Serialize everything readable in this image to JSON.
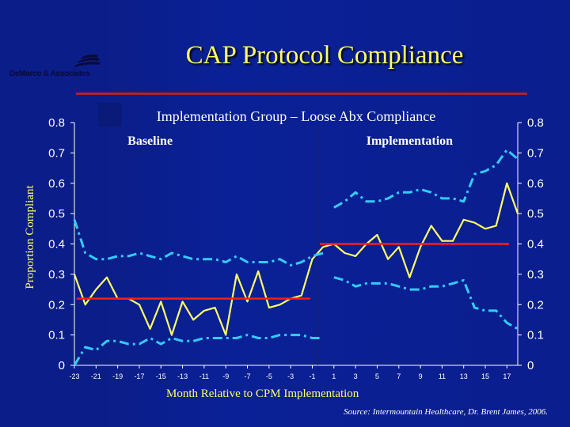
{
  "title": "CAP Protocol Compliance",
  "logo": {
    "name": "DeMarco & Associates"
  },
  "source": "Source: Intermountain Healthcare, Dr. Brent James, 2006.",
  "colors": {
    "title": "#ffff66",
    "series": "#ffff66",
    "ci": "#33ccff",
    "mean": "#ff1a1a",
    "axis": "#ffffff",
    "rule": "#b22222"
  },
  "chart_data": {
    "type": "line",
    "title": "Implementation Group – Loose Abx Compliance",
    "xlabel": "Month Relative to CPM Implementation",
    "ylabel": "Proportion Compliant",
    "xlim": [
      -23,
      18
    ],
    "ylim": [
      0,
      0.8
    ],
    "x_ticks": [
      -23,
      -21,
      -19,
      -17,
      -15,
      -13,
      -11,
      -9,
      -7,
      -5,
      -3,
      -1,
      1,
      3,
      5,
      7,
      9,
      11,
      13,
      15,
      17
    ],
    "x_tick_labels": [
      "-23",
      "-21",
      "-19",
      "-17",
      "-15",
      "-13",
      "-11",
      "-9",
      "-7",
      "-5",
      "-3",
      "-1",
      "1",
      "3",
      "5",
      "7",
      "9",
      "11",
      "13",
      "15",
      "17"
    ],
    "y_ticks": [
      0,
      0.1,
      0.2,
      0.3,
      0.4,
      0.5,
      0.6,
      0.7,
      0.8
    ],
    "y_tick_labels": [
      "0",
      "0.1",
      "0.2",
      "0.3",
      "0.4",
      "0.5",
      "0.6",
      "0.7",
      "0.8"
    ],
    "divider_x": -0.5,
    "phases": [
      {
        "label": "Baseline",
        "x": -16
      },
      {
        "label": "Implementation",
        "x": 8
      }
    ],
    "grid": false,
    "series": [
      {
        "role": "compliance",
        "x": [
          -23,
          -22,
          -21,
          -20,
          -19,
          -18,
          -17,
          -16,
          -15,
          -14,
          -13,
          -12,
          -11,
          -10,
          -9,
          -8,
          -7,
          -6,
          -5,
          -4,
          -3,
          -2,
          -1,
          0,
          1,
          2,
          3,
          4,
          5,
          6,
          7,
          8,
          9,
          10,
          11,
          12,
          13,
          14,
          15,
          16,
          17,
          18
        ],
        "values": [
          0.3,
          0.2,
          0.25,
          0.29,
          0.22,
          0.22,
          0.2,
          0.12,
          0.21,
          0.1,
          0.21,
          0.15,
          0.18,
          0.19,
          0.1,
          0.3,
          0.21,
          0.31,
          0.19,
          0.2,
          0.22,
          0.23,
          0.35,
          0.39,
          0.4,
          0.37,
          0.36,
          0.4,
          0.43,
          0.35,
          0.39,
          0.29,
          0.39,
          0.46,
          0.41,
          0.41,
          0.48,
          0.47,
          0.45,
          0.46,
          0.6,
          0.5
        ]
      },
      {
        "role": "upper-limit-baseline",
        "x": [
          -23,
          -22,
          -21,
          -20,
          -19,
          -18,
          -17,
          -16,
          -15,
          -14,
          -13,
          -12,
          -11,
          -10,
          -9,
          -8,
          -7,
          -6,
          -5,
          -4,
          -3,
          -2,
          -1,
          0
        ],
        "values": [
          0.48,
          0.37,
          0.35,
          0.35,
          0.36,
          0.36,
          0.37,
          0.36,
          0.35,
          0.37,
          0.36,
          0.35,
          0.35,
          0.35,
          0.34,
          0.36,
          0.34,
          0.34,
          0.34,
          0.35,
          0.33,
          0.34,
          0.36,
          0.37
        ]
      },
      {
        "role": "lower-limit-baseline",
        "x": [
          -23,
          -22,
          -21,
          -20,
          -19,
          -18,
          -17,
          -16,
          -15,
          -14,
          -13,
          -12,
          -11,
          -10,
          -9,
          -8,
          -7,
          -6,
          -5,
          -4,
          -3,
          -2,
          -1,
          0
        ],
        "values": [
          0.0,
          0.06,
          0.05,
          0.08,
          0.08,
          0.07,
          0.07,
          0.09,
          0.07,
          0.09,
          0.08,
          0.08,
          0.09,
          0.09,
          0.09,
          0.09,
          0.1,
          0.09,
          0.09,
          0.1,
          0.1,
          0.1,
          0.09,
          0.09
        ]
      },
      {
        "role": "upper-limit-implementation",
        "x": [
          1,
          2,
          3,
          4,
          5,
          6,
          7,
          8,
          9,
          10,
          11,
          12,
          13,
          14,
          15,
          16,
          17,
          18
        ],
        "values": [
          0.52,
          0.54,
          0.57,
          0.54,
          0.54,
          0.55,
          0.57,
          0.57,
          0.58,
          0.57,
          0.55,
          0.55,
          0.54,
          0.63,
          0.64,
          0.66,
          0.71,
          0.68
        ]
      },
      {
        "role": "lower-limit-implementation",
        "x": [
          1,
          2,
          3,
          4,
          5,
          6,
          7,
          8,
          9,
          10,
          11,
          12,
          13,
          14,
          15,
          16,
          17,
          18
        ],
        "values": [
          0.29,
          0.28,
          0.26,
          0.27,
          0.27,
          0.27,
          0.26,
          0.25,
          0.25,
          0.26,
          0.26,
          0.27,
          0.28,
          0.19,
          0.18,
          0.18,
          0.14,
          0.12
        ]
      }
    ],
    "means": [
      {
        "role": "baseline-mean",
        "x": [
          -22.8,
          -1.2
        ],
        "value": 0.22
      },
      {
        "role": "implementation-mean",
        "x": [
          -0.3,
          17.2
        ],
        "value": 0.4
      }
    ]
  }
}
